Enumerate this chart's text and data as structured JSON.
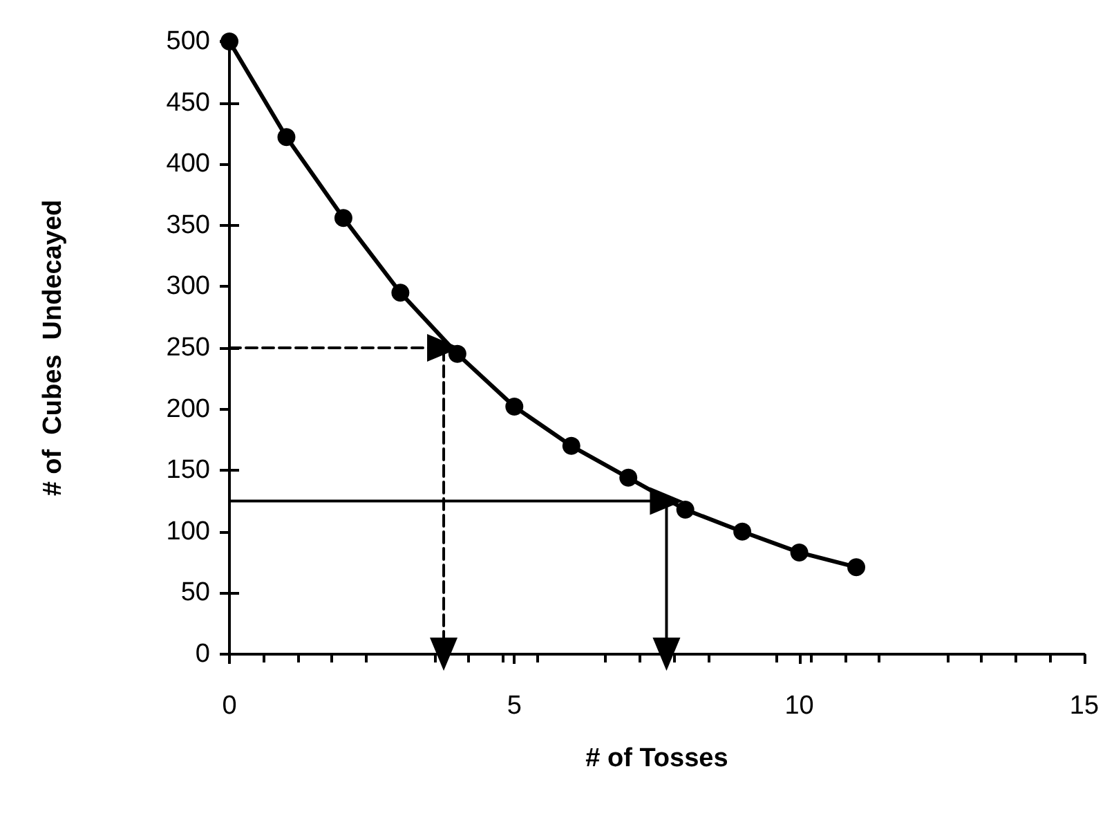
{
  "chart_data": {
    "type": "line",
    "xlabel": "# of Tosses",
    "ylabel": "# of  Cubes  Undecayed",
    "xlim": [
      0,
      15
    ],
    "xticks": [
      0,
      5,
      10,
      15
    ],
    "ylim": [
      0,
      500
    ],
    "yticks": [
      0,
      50,
      100,
      150,
      200,
      250,
      300,
      350,
      400,
      450,
      500
    ],
    "grid": false,
    "series": [
      {
        "type": "line",
        "color": "#000000",
        "marker": "circle",
        "line_style": "solid",
        "x": [
          0,
          1,
          2,
          3,
          4,
          5,
          6,
          7,
          8,
          9,
          10,
          11
        ],
        "values": [
          500,
          422,
          356,
          295,
          245,
          202,
          170,
          144,
          118,
          100,
          83,
          71
        ]
      },
      {
        "type": "line",
        "color": "#000000",
        "marker": "triangle",
        "line_style": "dashed",
        "x": [
          0,
          3.76,
          3.76
        ],
        "values": [
          250,
          250,
          0
        ]
      },
      {
        "type": "line",
        "color": "#000000",
        "marker": "triangle",
        "line_style": "solid",
        "x": [
          0,
          7.67,
          7.67
        ],
        "values": [
          125,
          125,
          0
        ]
      }
    ]
  }
}
